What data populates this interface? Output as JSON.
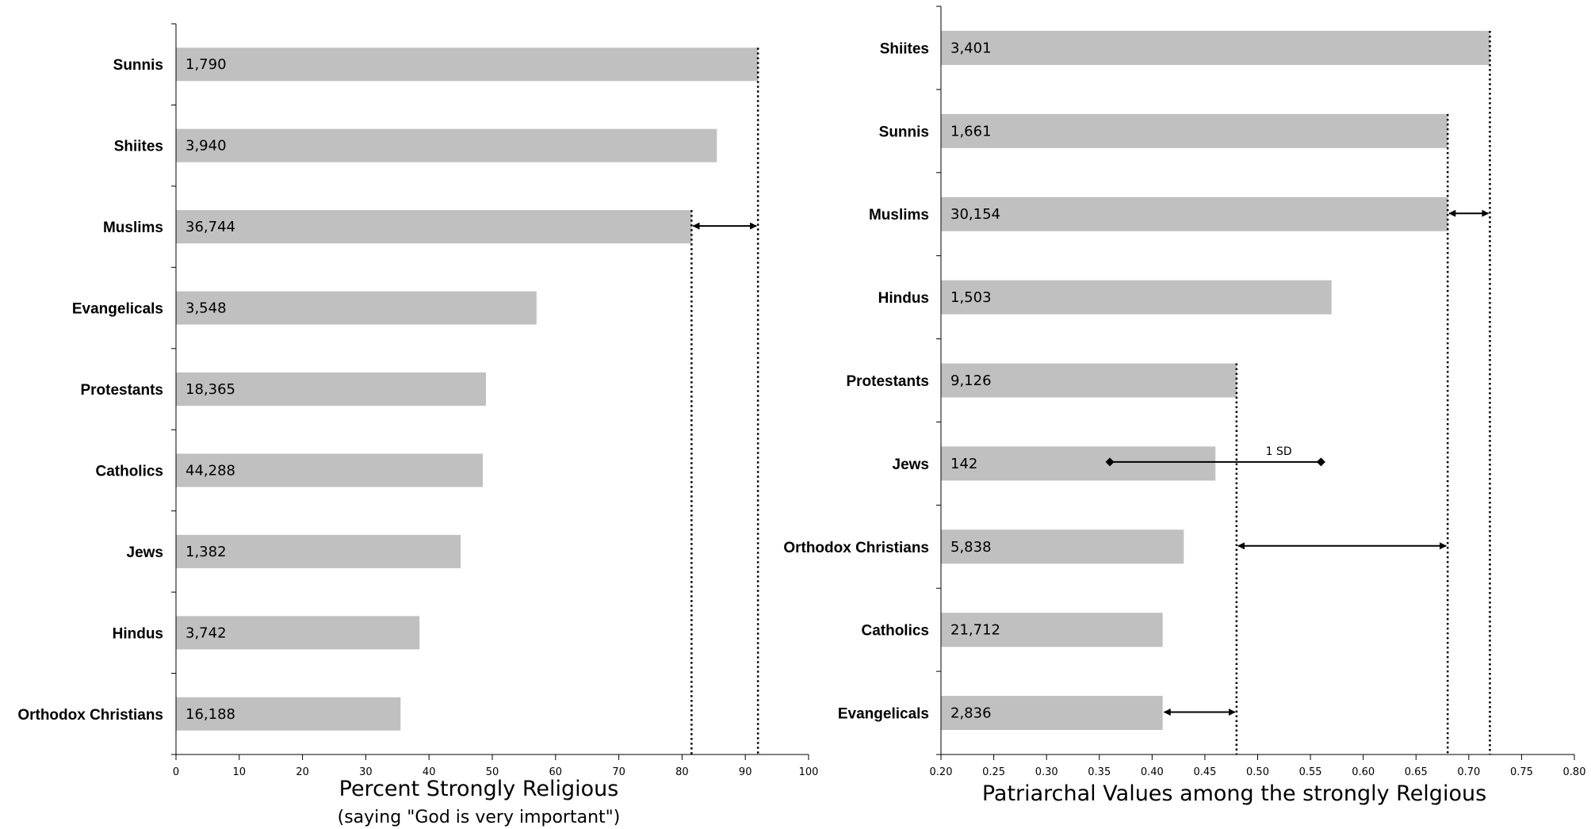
{
  "chart_data": [
    {
      "type": "bar",
      "orientation": "horizontal",
      "categories": [
        "Sunnis",
        "Shiites",
        "Muslims",
        "Evangelicals",
        "Protestants",
        "Catholics",
        "Jews",
        "Hindus",
        "Orthodox Christians"
      ],
      "values": [
        92,
        85.5,
        81.5,
        57,
        49,
        48.5,
        45,
        38.5,
        35.5
      ],
      "sample_sizes": [
        "1,790",
        "3,940",
        "36,744",
        "3,548",
        "18,365",
        "44,288",
        "1,382",
        "3,742",
        "16,188"
      ],
      "bar_color": "#c0c0c0",
      "xlabel": "Percent Strongly Religious",
      "xsublabel": "(saying \"God is very important\")",
      "xlim": [
        0,
        100
      ],
      "xticks": [
        "0",
        "10",
        "20",
        "30",
        "40",
        "50",
        "60",
        "70",
        "80",
        "90",
        "100"
      ],
      "grid": false,
      "reference_lines": [
        92,
        81.5
      ],
      "arrows": [
        {
          "from": 81.5,
          "to": 92,
          "category": "Muslims"
        }
      ]
    },
    {
      "type": "bar",
      "orientation": "horizontal",
      "categories": [
        "Shiites",
        "Sunnis",
        "Muslims",
        "Hindus",
        "Protestants",
        "Jews",
        "Orthodox Christians",
        "Catholics",
        "Evangelicals"
      ],
      "values": [
        0.72,
        0.68,
        0.68,
        0.57,
        0.48,
        0.46,
        0.43,
        0.41,
        0.41
      ],
      "sample_sizes": [
        "3,401",
        "1,661",
        "30,154",
        "1,503",
        "9,126",
        "142",
        "5,838",
        "21,712",
        "2,836"
      ],
      "bar_color": "#c0c0c0",
      "xlabel": "Patriarchal Values among the strongly Relgious",
      "xlim": [
        0.2,
        0.8
      ],
      "xticks": [
        "0.20",
        "0.25",
        "0.30",
        "0.35",
        "0.40",
        "0.45",
        "0.50",
        "0.55",
        "0.60",
        "0.65",
        "0.70",
        "0.75",
        "0.80"
      ],
      "grid": false,
      "reference_lines": [
        0.72,
        0.68,
        0.48
      ],
      "arrows": [
        {
          "from": 0.68,
          "to": 0.72,
          "category": "Muslims"
        },
        {
          "from": 0.48,
          "to": 0.68,
          "category": "Orthodox Christians"
        },
        {
          "from": 0.41,
          "to": 0.48,
          "category": "Evangelicals"
        }
      ],
      "sd_marker": {
        "label": "1 SD",
        "from": 0.36,
        "to": 0.56,
        "category": "Jews"
      }
    }
  ]
}
